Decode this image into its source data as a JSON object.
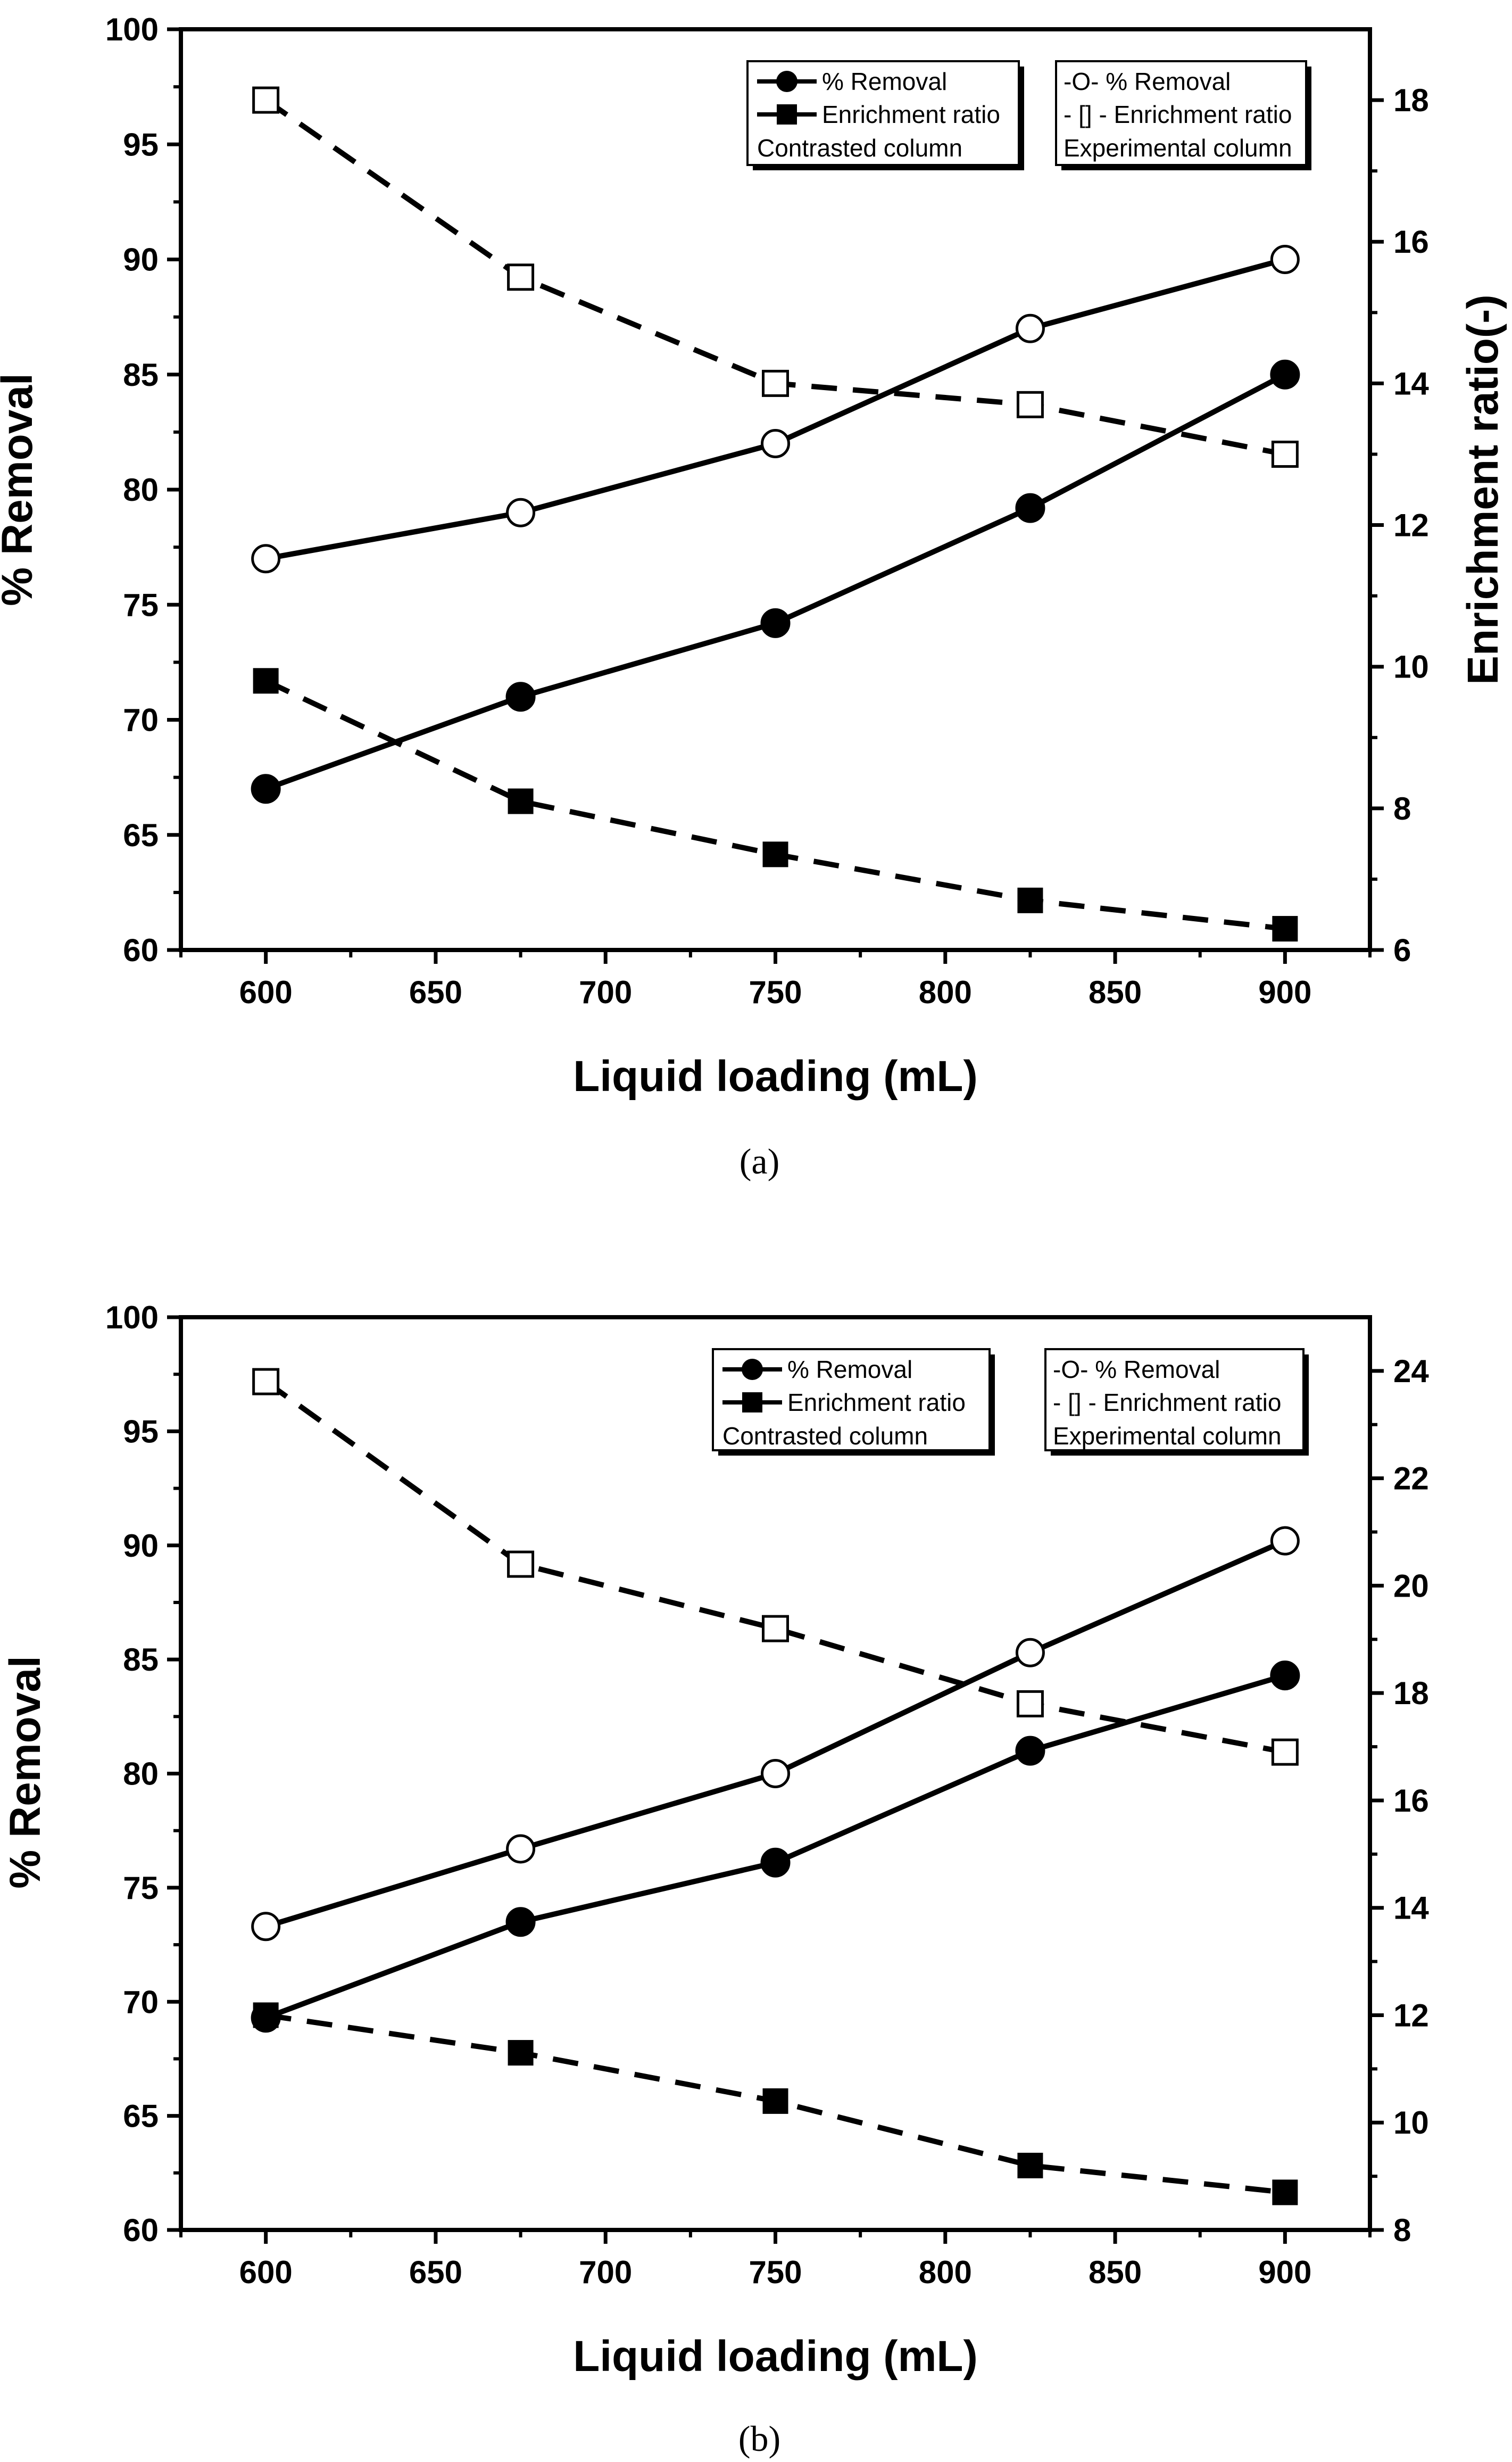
{
  "chart_data": [
    {
      "type": "line",
      "caption": "(a)",
      "xlabel": "Liquid  loading (mL)",
      "ylabel": "% Removal",
      "ylabel_right": "Enrichment ratio(-)",
      "xlim": [
        575,
        925
      ],
      "ylim": [
        60,
        100
      ],
      "ylim_right": [
        6,
        19
      ],
      "xticks": [
        "600",
        "650",
        "700",
        "750",
        "800",
        "850",
        "900"
      ],
      "yticks": [
        "60",
        "65",
        "70",
        "75",
        "80",
        "85",
        "90",
        "95",
        "100"
      ],
      "yticks_right": [
        "6",
        "8",
        "10",
        "12",
        "14",
        "16",
        "18"
      ],
      "x": [
        600,
        675,
        750,
        825,
        900
      ],
      "series": [
        {
          "name": "% Removal",
          "group": "Contrasted column",
          "axis": "left",
          "marker": "filled-circle",
          "line": "solid",
          "values": [
            67,
            71,
            74.2,
            79.2,
            85
          ]
        },
        {
          "name": "Enrichment ratio",
          "group": "Contrasted column",
          "axis": "right",
          "marker": "filled-square",
          "line": "dashed",
          "values": [
            9.8,
            8.1,
            7.35,
            6.7,
            6.3
          ]
        },
        {
          "name": "% Removal",
          "group": "Experimental column",
          "axis": "left",
          "marker": "open-circle",
          "line": "solid",
          "values": [
            77,
            79,
            82,
            87,
            90
          ]
        },
        {
          "name": "Enrichment ratio",
          "group": "Experimental column",
          "axis": "right",
          "marker": "open-square",
          "line": "dashed",
          "values": [
            18,
            15.5,
            14,
            13.7,
            13
          ]
        }
      ],
      "legend": {
        "placement": "top-right",
        "box1": {
          "items": [
            "% Removal",
            "Enrichment ratio"
          ],
          "group": "Contrasted column"
        },
        "box2": {
          "items": [
            "-O-  % Removal",
            "- [] - Enrichment ratio"
          ],
          "group": "Experimental column"
        }
      }
    },
    {
      "type": "line",
      "caption": "(b)",
      "xlabel": "Liquid  loading (mL)",
      "ylabel": "% Removal",
      "ylabel_right": "",
      "xlim": [
        575,
        925
      ],
      "ylim": [
        60,
        100
      ],
      "ylim_right": [
        8,
        25
      ],
      "xticks": [
        "600",
        "650",
        "700",
        "750",
        "800",
        "850",
        "900"
      ],
      "yticks": [
        "60",
        "65",
        "70",
        "75",
        "80",
        "85",
        "90",
        "95",
        "100"
      ],
      "yticks_right": [
        "8",
        "10",
        "12",
        "14",
        "16",
        "18",
        "20",
        "22",
        "24"
      ],
      "x": [
        600,
        675,
        750,
        825,
        900
      ],
      "series": [
        {
          "name": "% Removal",
          "group": "Contrasted column",
          "axis": "left",
          "marker": "filled-circle",
          "line": "solid",
          "values": [
            69.3,
            73.5,
            76.1,
            81,
            84.3
          ]
        },
        {
          "name": "Enrichment ratio",
          "group": "Contrasted column",
          "axis": "right",
          "marker": "filled-square",
          "line": "dashed",
          "values": [
            12,
            11.3,
            10.4,
            9.2,
            8.7
          ]
        },
        {
          "name": "% Removal",
          "group": "Experimental column",
          "axis": "left",
          "marker": "open-circle",
          "line": "solid",
          "values": [
            73.3,
            76.7,
            80,
            85.3,
            90.2
          ]
        },
        {
          "name": "Enrichment ratio",
          "group": "Experimental column",
          "axis": "right",
          "marker": "open-square",
          "line": "dashed",
          "values": [
            23.8,
            20.4,
            19.2,
            17.8,
            16.9
          ]
        }
      ],
      "legend": {
        "placement": "top-right",
        "box1": {
          "items": [
            "% Removal",
            "Enrichment ratio"
          ],
          "group": "Contrasted column"
        },
        "box2": {
          "items": [
            "-O-  % Removal",
            "- [] - Enrichment ratio"
          ],
          "group": "Experimental column"
        }
      }
    }
  ]
}
